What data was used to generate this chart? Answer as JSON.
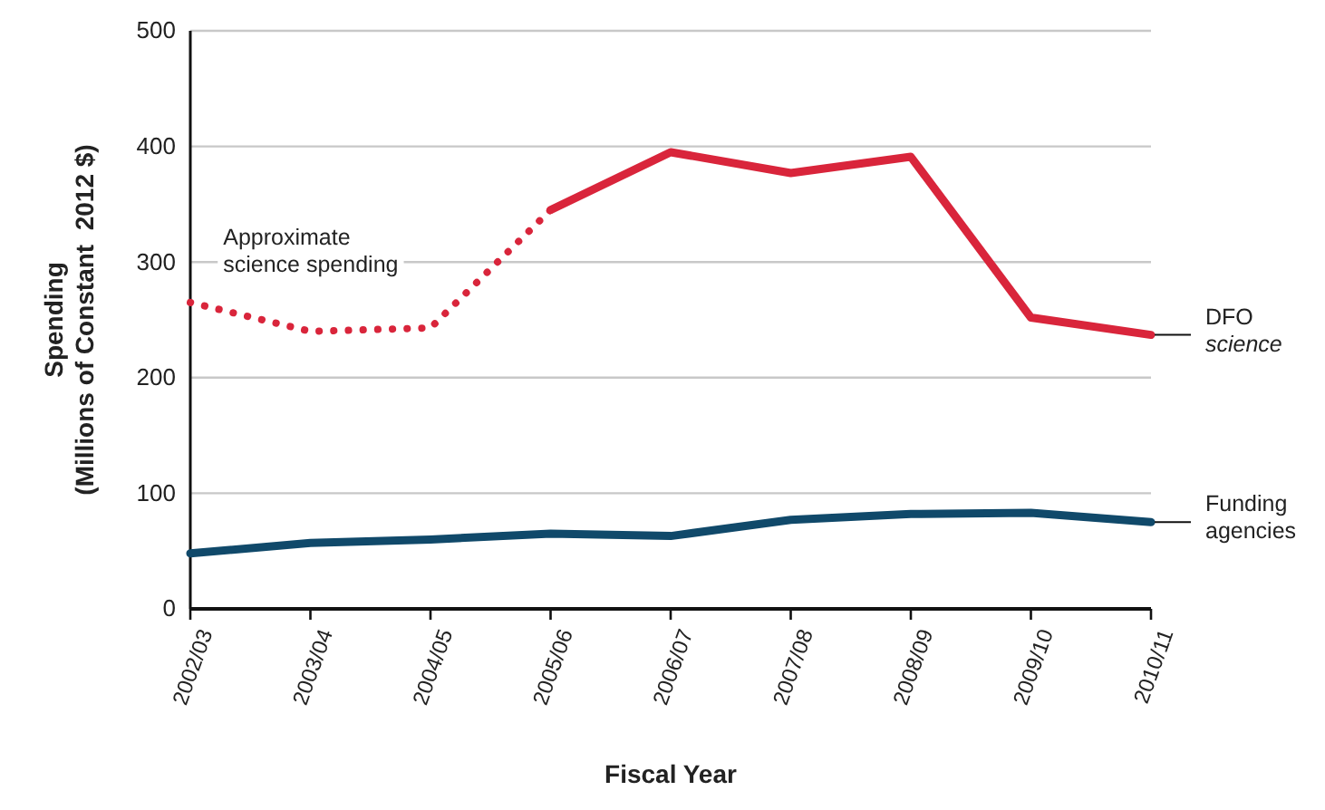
{
  "chart_data": {
    "type": "line",
    "xlabel": "Fiscal Year",
    "ylabel": "Spending\n(Millions of Constant  2012 $)",
    "categories": [
      "2002/03",
      "2003/04",
      "2004/05",
      "2005/06",
      "2006/07",
      "2007/08",
      "2008/09",
      "2009/10",
      "2010/11"
    ],
    "series": [
      {
        "name": "Approximate science spending",
        "color": "#d9253b",
        "line_style": "dotted",
        "values": [
          265,
          240,
          243,
          345,
          null,
          null,
          null,
          null,
          null
        ]
      },
      {
        "name": "DFO science",
        "color": "#d9253b",
        "line_style": "solid",
        "values": [
          null,
          null,
          null,
          345,
          395,
          377,
          391,
          252,
          237
        ]
      },
      {
        "name": "Funding agencies",
        "color": "#10496a",
        "line_style": "solid",
        "values": [
          48,
          57,
          60,
          65,
          63,
          77,
          82,
          83,
          75
        ]
      }
    ],
    "ylim": [
      0,
      500
    ],
    "yticks": [
      0,
      100,
      200,
      300,
      400,
      500
    ],
    "grid": "y",
    "marker": "none"
  }
}
